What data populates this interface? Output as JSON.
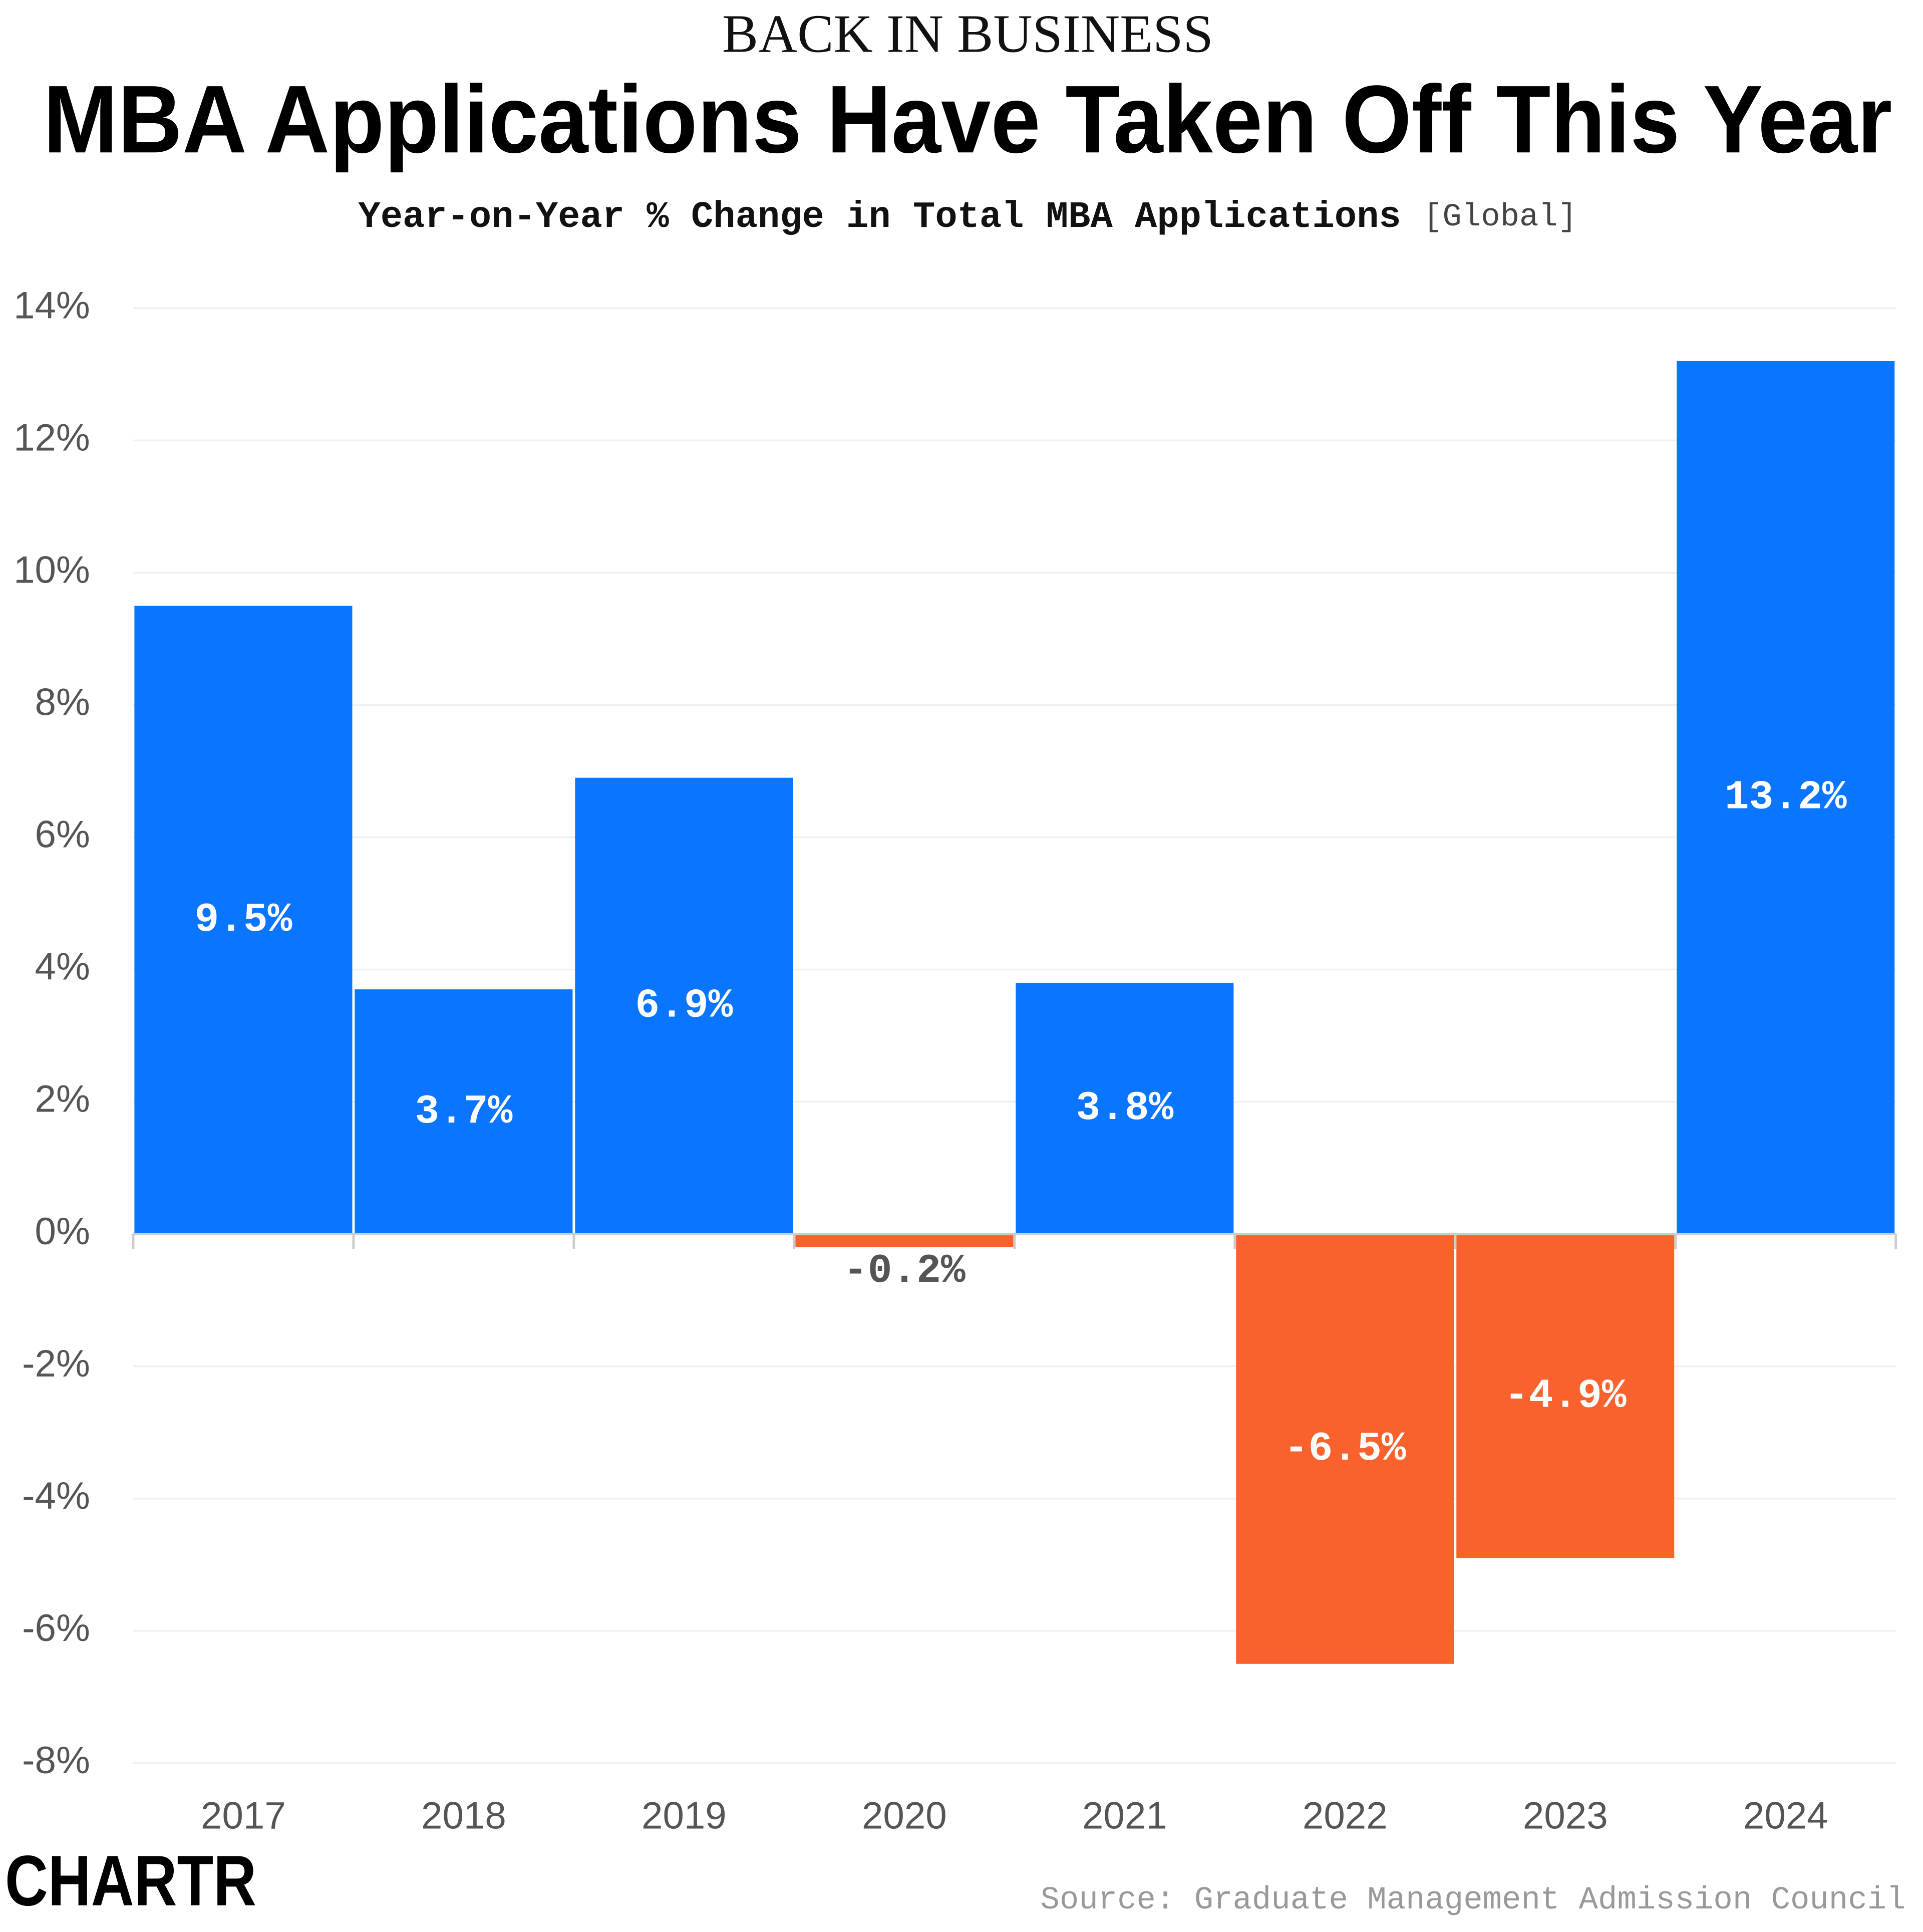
{
  "chart_data": {
    "type": "bar",
    "kicker": "BACK IN BUSINESS",
    "title": "MBA Applications Have Taken Off This Year",
    "subtitle": "Year-on-Year % Change in Total MBA Applications",
    "subtitle_note": "[Global]",
    "source": "Source: Graduate Management Admission Council",
    "logo": "CHARTR",
    "categories": [
      "2017",
      "2018",
      "2019",
      "2020",
      "2021",
      "2022",
      "2023",
      "2024"
    ],
    "values": [
      9.5,
      3.7,
      6.9,
      -0.2,
      3.8,
      -6.5,
      -4.9,
      13.2
    ],
    "value_labels": [
      "9.5%",
      "3.7%",
      "6.9%",
      "-0.2%",
      "3.8%",
      "-6.5%",
      "-4.9%",
      "13.2%"
    ],
    "colors": [
      "#0a75ff",
      "#0a75ff",
      "#0a75ff",
      "#f9612d",
      "#0a75ff",
      "#f9612d",
      "#f9612d",
      "#0a75ff"
    ],
    "ylim": [
      -8,
      14
    ],
    "yticks": [
      {
        "value": -8,
        "label": "-8%"
      },
      {
        "value": -6,
        "label": "-6%"
      },
      {
        "value": -4,
        "label": "-4%"
      },
      {
        "value": -2,
        "label": "-2%"
      },
      {
        "value": 0,
        "label": "0%"
      },
      {
        "value": 2,
        "label": "2%"
      },
      {
        "value": 4,
        "label": "4%"
      },
      {
        "value": 6,
        "label": "6%"
      },
      {
        "value": 8,
        "label": "8%"
      },
      {
        "value": 10,
        "label": "10%"
      },
      {
        "value": 12,
        "label": "12%"
      },
      {
        "value": 14,
        "label": "14%"
      }
    ],
    "grid": true
  }
}
